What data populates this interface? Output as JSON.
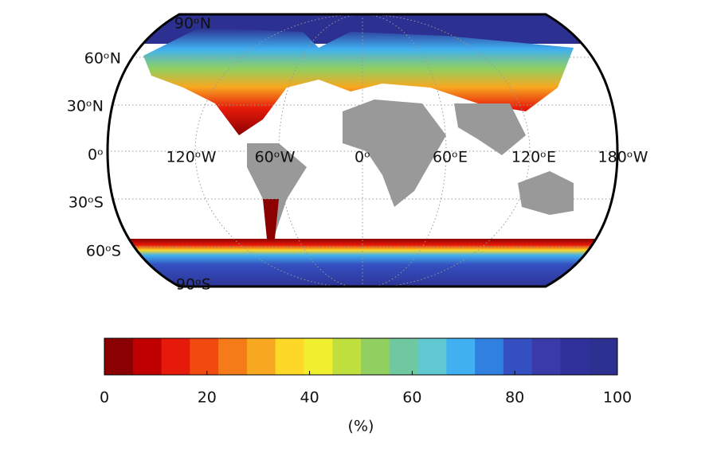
{
  "map": {
    "lat_labels": [
      "90ᵒN",
      "60ᵒN",
      "30ᵒN",
      "0ᵒ",
      "30ᵒS",
      "60ᵒS",
      "90ᵒS"
    ],
    "lon_labels": [
      "120ᵒW",
      "60ᵒW",
      "0ᵒ",
      "60ᵒE",
      "120ᵒE",
      "180ᵒW"
    ]
  },
  "colorbar": {
    "label": "(%)",
    "lim": [
      0,
      100
    ],
    "ticks": [
      0,
      20,
      40,
      60,
      80,
      100
    ],
    "colors": [
      "#8b0000",
      "#c00000",
      "#e61a0a",
      "#f04a10",
      "#f57a18",
      "#f8a820",
      "#fdd826",
      "#f0f030",
      "#c0e040",
      "#90d060",
      "#70c8a0",
      "#60c8d0",
      "#40b0f0",
      "#3080e0",
      "#3450c0",
      "#3a3aa8",
      "#30309a",
      "#2c3090"
    ]
  }
}
